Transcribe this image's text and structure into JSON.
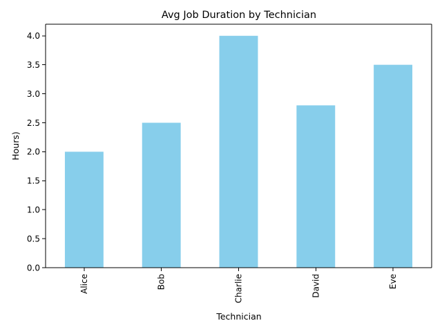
{
  "chart_data": {
    "type": "bar",
    "title": "Avg Job Duration by Technician",
    "xlabel": "Technician",
    "ylabel": "Hours)",
    "categories": [
      "Alice",
      "Bob",
      "Charlie",
      "David",
      "Eve"
    ],
    "values": [
      2.0,
      2.5,
      4.0,
      2.8,
      3.5
    ],
    "ylim": [
      0,
      4.2
    ],
    "yticks": [
      "0.0",
      "0.5",
      "1.0",
      "1.5",
      "2.0",
      "2.5",
      "3.0",
      "3.5",
      "4.0"
    ],
    "bar_color": "#87CEEB",
    "grid": false,
    "legend": "none"
  }
}
